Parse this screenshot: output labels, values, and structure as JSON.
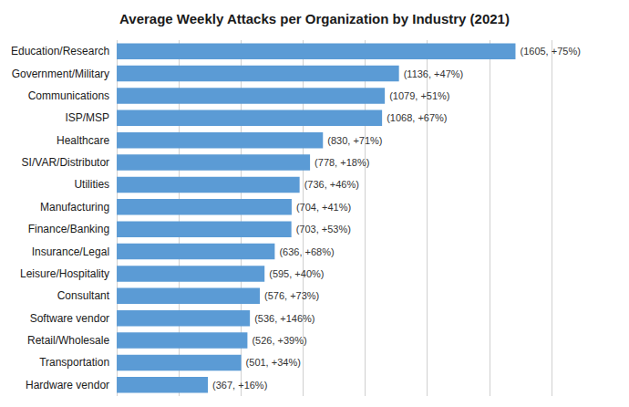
{
  "chart_data": {
    "type": "bar",
    "orientation": "horizontal",
    "title": "Average Weekly Attacks per Organization by Industry (2021)",
    "categories": [
      "Hardware vendor",
      "Transportation",
      "Retail/Wholesale",
      "Software vendor",
      "Consultant",
      "Leisure/Hospitality",
      "Insurance/Legal",
      "Finance/Banking",
      "Manufacturing",
      "Utilities",
      "SI/VAR/Distributor",
      "Healthcare",
      "ISP/MSP",
      "Communications",
      "Government/Military",
      "Education/Research"
    ],
    "values": [
      367,
      501,
      526,
      536,
      576,
      595,
      636,
      703,
      704,
      736,
      778,
      830,
      1068,
      1079,
      1136,
      1605
    ],
    "value_labels": [
      "(367, +16%)",
      "(501, +34%)",
      "(526, +39%)",
      "(536, +146%)",
      "(576, +73%)",
      "(595, +40%)",
      "(636, +68%)",
      "(703, +53%)",
      "(704, +41%)",
      "(736, +46%)",
      "(778, +18%)",
      "(830, +71%)",
      "(1068, +67%)",
      "(1079, +51%)",
      "(1136, +47%)",
      "(1605, +75%)"
    ],
    "data_labels": true,
    "color": "#5b9bd5",
    "xlim": [
      0,
      1750
    ],
    "xticks": [
      0,
      250,
      500,
      750,
      1000,
      1250,
      1500,
      1750
    ],
    "grid": true,
    "tick_labels": "y"
  }
}
